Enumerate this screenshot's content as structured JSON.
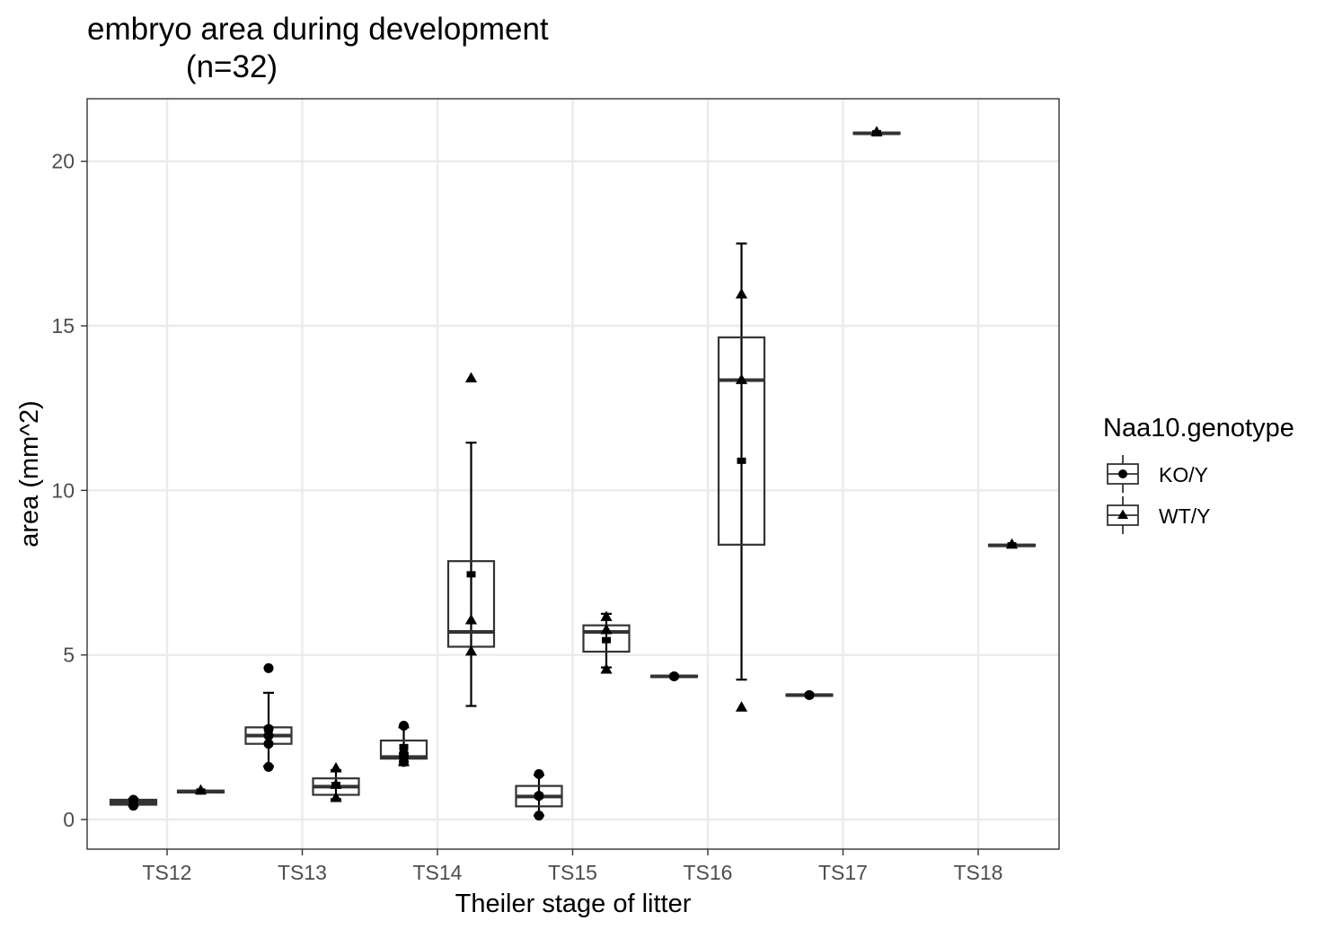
{
  "chart_data": {
    "type": "box",
    "title": [
      "embryo area during development",
      "(n=32)"
    ],
    "xlabel": "Theiler stage of litter",
    "ylabel": "area (mm^2)",
    "categories": [
      "TS12",
      "TS13",
      "TS14",
      "TS15",
      "TS16",
      "TS17",
      "TS18"
    ],
    "ylim": [
      -0.9,
      21.9
    ],
    "yticks": [
      0,
      5,
      10,
      15,
      20
    ],
    "grid": true,
    "legend": {
      "title": "Naa10.genotype",
      "position": "right",
      "entries": [
        {
          "label": "KO/Y",
          "shape": "circle"
        },
        {
          "label": "WT/Y",
          "shape": "triangle"
        }
      ]
    },
    "series": [
      {
        "name": "KO/Y",
        "shape": "circle",
        "boxes": [
          {
            "category": "TS12",
            "q1": 0.45,
            "median": 0.52,
            "q3": 0.6,
            "mean": 0.52,
            "whisker_low": 0.42,
            "whisker_high": 0.62,
            "points": [
              0.42,
              0.6
            ]
          },
          {
            "category": "TS13",
            "q1": 2.3,
            "median": 2.55,
            "q3": 2.8,
            "mean": 2.75,
            "whisker_low": 1.62,
            "whisker_high": 3.85,
            "points": [
              4.6,
              2.75,
              2.55,
              2.3,
              1.6
            ]
          },
          {
            "category": "TS14",
            "q1": 1.85,
            "median": 1.9,
            "q3": 2.4,
            "mean": 2.2,
            "whisker_low": 1.65,
            "whisker_high": 2.8,
            "points": [
              2.85,
              2.0,
              1.9,
              1.75
            ]
          },
          {
            "category": "TS15",
            "q1": 0.4,
            "median": 0.7,
            "q3": 1.02,
            "mean": 0.72,
            "whisker_low": 0.12,
            "whisker_high": 1.35,
            "points": [
              1.38,
              0.72,
              0.12
            ]
          },
          {
            "category": "TS16",
            "q1": 4.33,
            "median": 4.35,
            "q3": 4.37,
            "mean": 4.35,
            "whisker_low": 4.33,
            "whisker_high": 4.37,
            "points": [
              4.35
            ]
          },
          {
            "category": "TS17",
            "q1": 3.76,
            "median": 3.78,
            "q3": 3.8,
            "mean": 3.78,
            "whisker_low": 3.76,
            "whisker_high": 3.8,
            "points": [
              3.78
            ]
          }
        ]
      },
      {
        "name": "WT/Y",
        "shape": "triangle",
        "boxes": [
          {
            "category": "TS12",
            "q1": 0.82,
            "median": 0.85,
            "q3": 0.88,
            "mean": 0.85,
            "whisker_low": 0.82,
            "whisker_high": 0.88,
            "points": [
              0.88
            ]
          },
          {
            "category": "TS13",
            "q1": 0.75,
            "median": 1.0,
            "q3": 1.25,
            "mean": 1.05,
            "whisker_low": 0.62,
            "whisker_high": 1.5,
            "points": [
              1.55,
              1.05,
              0.65
            ]
          },
          {
            "category": "TS14",
            "q1": 5.25,
            "median": 5.7,
            "q3": 7.85,
            "mean": 7.45,
            "whisker_low": 3.45,
            "whisker_high": 11.45,
            "points": [
              13.4,
              6.05,
              5.1
            ]
          },
          {
            "category": "TS15",
            "q1": 5.1,
            "median": 5.7,
            "q3": 5.9,
            "mean": 5.45,
            "whisker_low": 4.62,
            "whisker_high": 6.25,
            "points": [
              6.15,
              5.75,
              4.55
            ]
          },
          {
            "category": "TS16",
            "q1": 8.35,
            "median": 13.35,
            "q3": 14.65,
            "mean": 10.9,
            "whisker_low": 4.25,
            "whisker_high": 17.5,
            "points": [
              15.95,
              13.35,
              3.4
            ]
          },
          {
            "category": "TS17",
            "q1": 20.83,
            "median": 20.85,
            "q3": 20.87,
            "mean": 20.85,
            "whisker_low": 20.83,
            "whisker_high": 20.87,
            "points": [
              20.88
            ]
          },
          {
            "category": "TS18",
            "q1": 8.31,
            "median": 8.33,
            "q3": 8.35,
            "mean": 8.33,
            "whisker_low": 8.31,
            "whisker_high": 8.35,
            "points": [
              8.35
            ]
          }
        ]
      }
    ]
  }
}
